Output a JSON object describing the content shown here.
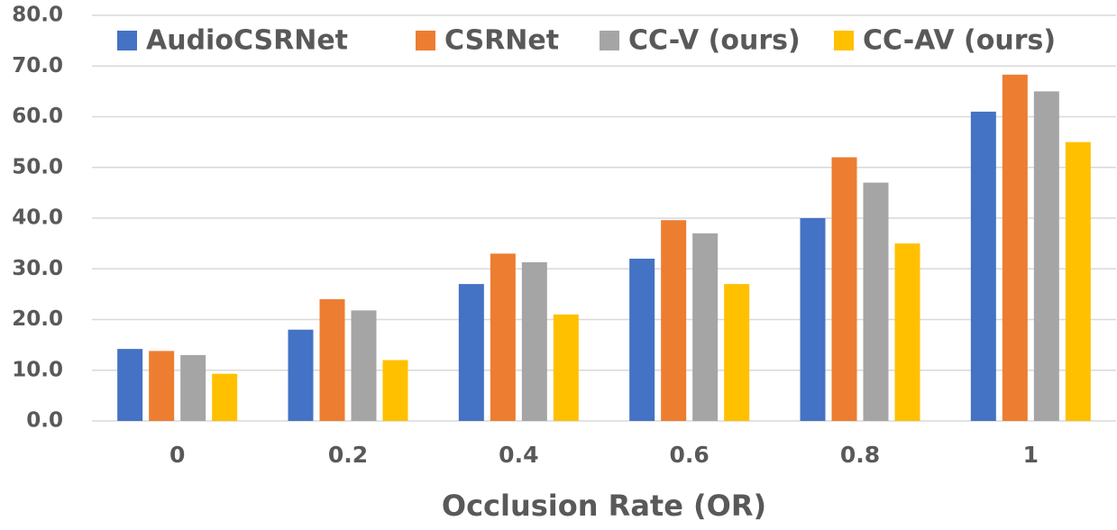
{
  "chart_data": {
    "type": "bar",
    "x_label": "Occlusion Rate (OR)",
    "categories": [
      "0",
      "0.2",
      "0.4",
      "0.6",
      "0.8",
      "1"
    ],
    "series": [
      {
        "name": "AudioCSRNet",
        "color": "#4472c4",
        "values": [
          14.2,
          18,
          27,
          32,
          40,
          61
        ]
      },
      {
        "name": "CSRNet",
        "color": "#ed7d31",
        "values": [
          13.8,
          24,
          33,
          39.6,
          52,
          68.3
        ]
      },
      {
        "name": "CC-V (ours)",
        "color": "#a5a5a5",
        "values": [
          13,
          21.8,
          31.3,
          37,
          47,
          65
        ]
      },
      {
        "name": "CC-AV (ours)",
        "color": "#ffc000",
        "values": [
          9.3,
          12,
          21,
          27,
          35,
          55
        ]
      }
    ],
    "ylim": [
      0,
      80
    ],
    "yticks": [
      {
        "value": 0,
        "label": "0.0"
      },
      {
        "value": 10,
        "label": "10.0"
      },
      {
        "value": 20,
        "label": "20.0"
      },
      {
        "value": 30,
        "label": "30.0"
      },
      {
        "value": 40,
        "label": "40.0"
      },
      {
        "value": 50,
        "label": "50.0"
      },
      {
        "value": 60,
        "label": "60.0"
      },
      {
        "value": 70,
        "label": "70.0"
      },
      {
        "value": 80,
        "label": "80.0"
      }
    ],
    "grid": true,
    "legend": "top"
  }
}
